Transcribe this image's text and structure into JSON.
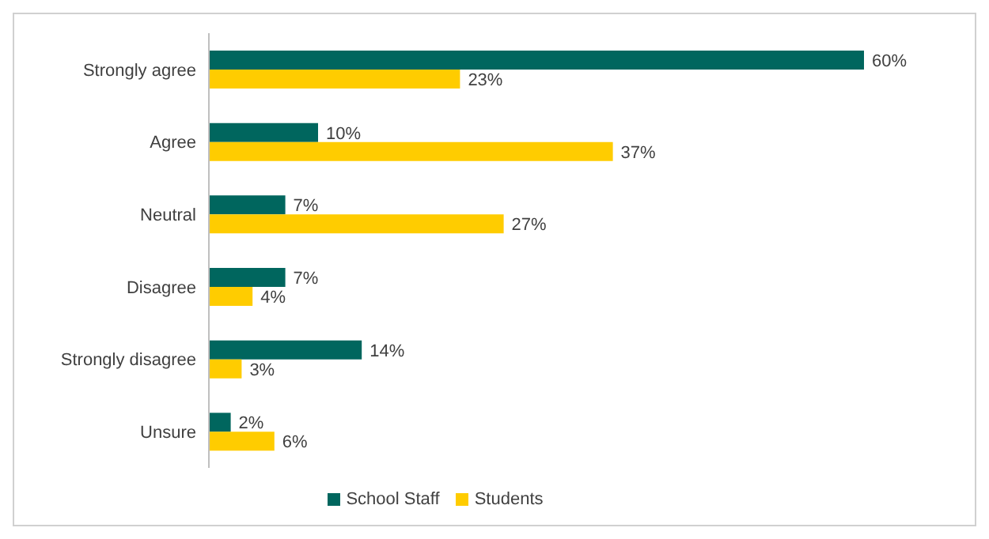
{
  "chart_data": {
    "type": "bar",
    "orientation": "horizontal",
    "categories": [
      "Strongly agree",
      "Agree",
      "Neutral",
      "Disagree",
      "Strongly disagree",
      "Unsure"
    ],
    "series": [
      {
        "name": "School Staff",
        "color": "#00665e",
        "values": [
          60,
          10,
          7,
          7,
          14,
          2
        ],
        "value_labels": [
          "60%",
          "10%",
          "7%",
          "7%",
          "14%",
          "2%"
        ]
      },
      {
        "name": "Students",
        "color": "#ffcc00",
        "values": [
          23,
          37,
          27,
          4,
          3,
          6
        ],
        "value_labels": [
          "23%",
          "37%",
          "27%",
          "4%",
          "3%",
          "6%"
        ]
      }
    ],
    "legend": "bottom"
  }
}
